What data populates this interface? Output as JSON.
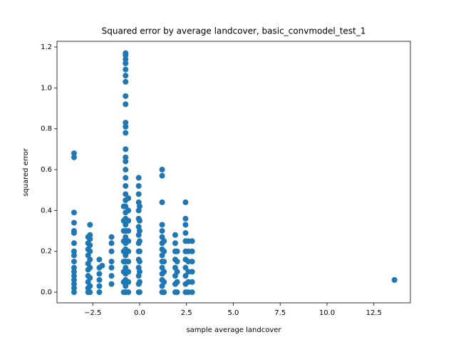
{
  "chart_data": {
    "type": "scatter",
    "title": "Squared error by average landcover, basic_convmodel_test_1",
    "x_label": "sample average landcover",
    "y_label": "squared error",
    "color": "#1f77b4",
    "xlim": [
      -4.41,
      14.45
    ],
    "ylim": [
      -0.052,
      1.228
    ],
    "xticks": [
      {
        "value": -2.5,
        "label": "−2.5"
      },
      {
        "value": 0,
        "label": "0.0"
      },
      2.5,
      {
        "value": 5,
        "label": "5.0"
      },
      7.5,
      {
        "value": 10,
        "label": "10.0"
      },
      12.5
    ],
    "yticks": [
      {
        "value": 0,
        "label": "0.0"
      },
      0.2,
      0.4,
      0.6,
      0.8,
      {
        "value": 1,
        "label": "1.0"
      },
      1.2
    ],
    "x": [
      -3.5,
      -3.5,
      -3.5,
      -3.5,
      -3.5,
      -3.5,
      -3.5,
      -3.5,
      -3.5,
      -3.5,
      -3.5,
      -3.5,
      -3.5,
      -3.5,
      -3.5,
      -3.5,
      -3.5,
      -2.75,
      -2.75,
      -2.75,
      -2.75,
      -2.75,
      -2.75,
      -2.75,
      -2.75,
      -2.75,
      -2.75,
      -2.65,
      -2.65,
      -2.65,
      -2.65,
      -2.65,
      -2.65,
      -2.65,
      -2.65,
      -2.65,
      -2.65,
      -2.15,
      -2.15,
      -2.15,
      -2.15,
      -2.15,
      -2.15,
      -2.0,
      -1.5,
      -1.5,
      -1.5,
      -1.5,
      -1.5,
      -1.5,
      -1.5,
      -0.75,
      -0.75,
      -0.75,
      -0.75,
      -0.75,
      -0.75,
      -0.75,
      -0.75,
      -0.75,
      -0.75,
      -0.75,
      -0.75,
      -0.75,
      -0.75,
      -0.75,
      -0.75,
      -0.75,
      -0.75,
      -0.75,
      -0.75,
      -0.75,
      -0.75,
      -0.75,
      -0.75,
      -0.75,
      -0.75,
      -0.75,
      -0.75,
      -0.75,
      -0.75,
      -0.75,
      -0.75,
      -0.75,
      -0.75,
      -0.75,
      -0.85,
      -0.85,
      -0.85,
      -0.85,
      -0.85,
      -0.85,
      -0.85,
      -0.85,
      -0.85,
      -0.6,
      -0.6,
      -0.6,
      -0.6,
      -0.6,
      -0.6,
      -0.6,
      -0.6,
      -0.6,
      -0.6,
      -0.05,
      -0.05,
      -0.05,
      -0.05,
      -0.05,
      -0.05,
      -0.05,
      -0.05,
      -0.05,
      -0.05,
      -0.05,
      -0.05,
      -0.05,
      -0.05,
      -0.05,
      0,
      0,
      0,
      0,
      0,
      0,
      0,
      0,
      0,
      1.2,
      1.2,
      1.2,
      1.2,
      1.2,
      1.2,
      1.2,
      1.2,
      1.2,
      1.2,
      1.2,
      1.2,
      1.2,
      1.2,
      1.2,
      1.3,
      1.3,
      1.3,
      1.3,
      1.3,
      1.3,
      1.9,
      1.9,
      1.9,
      1.9,
      1.9,
      1.9,
      1.9,
      1.9,
      2.0,
      2.0,
      2.0,
      2.0,
      2.0,
      2.45,
      2.45,
      2.45,
      2.45,
      2.45,
      2.45,
      2.45,
      2.45,
      2.45,
      2.45,
      2.45,
      2.6,
      2.6,
      2.6,
      2.6,
      2.6,
      2.6,
      2.8,
      2.8,
      2.8,
      2.8,
      2.8,
      2.8,
      13.6
    ],
    "values": [
      0,
      0.02,
      0.04,
      0.06,
      0.08,
      0.1,
      0.12,
      0.15,
      0.18,
      0.2,
      0.24,
      0.29,
      0.3,
      0.34,
      0.39,
      0.66,
      0.68,
      0,
      0.02,
      0.05,
      0.08,
      0.11,
      0.14,
      0.18,
      0.21,
      0.24,
      0.27,
      0,
      0.03,
      0.07,
      0.12,
      0.16,
      0.2,
      0.23,
      0.26,
      0.28,
      0.33,
      0,
      0.03,
      0.06,
      0.09,
      0.12,
      0.16,
      0.13,
      0.04,
      0.08,
      0.12,
      0.15,
      0.2,
      0.24,
      0.27,
      0,
      0.03,
      0.06,
      0.09,
      0.12,
      0.15,
      0.18,
      0.21,
      0.24,
      0.27,
      0.3,
      0.33,
      0.36,
      0.39,
      0.42,
      0.45,
      0.48,
      0.52,
      0.56,
      0.6,
      0.64,
      0.66,
      0.7,
      0.78,
      0.81,
      0.83,
      0.92,
      0.96,
      1.03,
      1.06,
      1.09,
      1.12,
      1.14,
      1.16,
      1.17,
      0,
      0.05,
      0.1,
      0.15,
      0.2,
      0.25,
      0.3,
      0.35,
      0.42,
      0,
      0.05,
      0.1,
      0.15,
      0.2,
      0.25,
      0.3,
      0.35,
      0.4,
      0.46,
      0,
      0.04,
      0.08,
      0.12,
      0.16,
      0.2,
      0.24,
      0.28,
      0.32,
      0.36,
      0.4,
      0.44,
      0.48,
      0.52,
      0.56,
      0,
      0.05,
      0.1,
      0.15,
      0.2,
      0.25,
      0.3,
      0.35,
      0.42,
      0,
      0.03,
      0.06,
      0.09,
      0.12,
      0.15,
      0.18,
      0.21,
      0.24,
      0.27,
      0.3,
      0.33,
      0.44,
      0.57,
      0.6,
      0,
      0.05,
      0.1,
      0.15,
      0.2,
      0.25,
      0,
      0.04,
      0.08,
      0.12,
      0.16,
      0.2,
      0.24,
      0.28,
      0,
      0.05,
      0.1,
      0.15,
      0.2,
      0,
      0.04,
      0.08,
      0.12,
      0.16,
      0.2,
      0.25,
      0.29,
      0.33,
      0.36,
      0.44,
      0,
      0.05,
      0.1,
      0.15,
      0.2,
      0.25,
      0,
      0.05,
      0.1,
      0.15,
      0.2,
      0.25,
      0.06
    ]
  }
}
